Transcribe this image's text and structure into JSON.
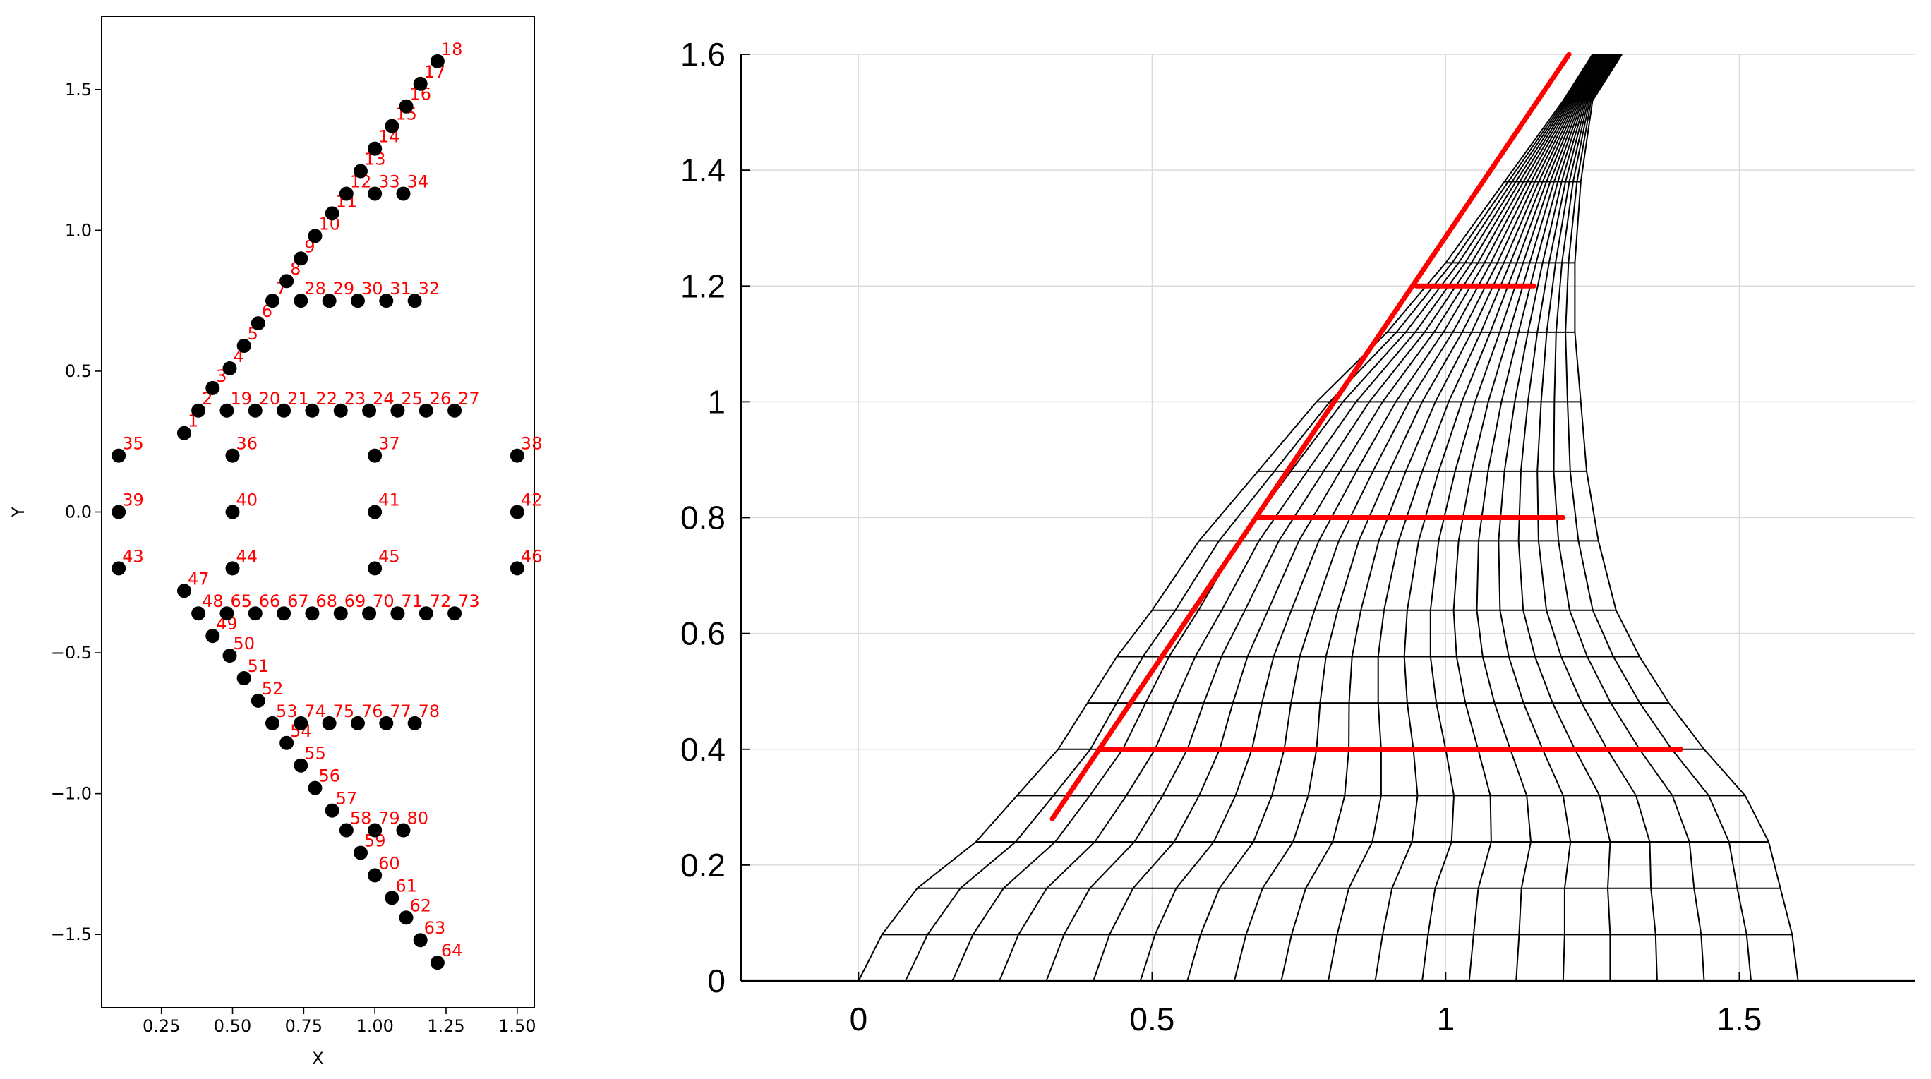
{
  "chart_data": [
    {
      "type": "scatter",
      "title": "",
      "xlabel": "X",
      "ylabel": "Y",
      "xlim": [
        0.04,
        1.56
      ],
      "ylim": [
        -1.76,
        1.76
      ],
      "xticks": [
        "0.25",
        "0.50",
        "0.75",
        "1.00",
        "1.25",
        "1.50"
      ],
      "xtick_values": [
        0.25,
        0.5,
        0.75,
        1.0,
        1.25,
        1.5
      ],
      "yticks": [
        "−1.5",
        "−1.0",
        "−0.5",
        "0.0",
        "0.5",
        "1.0",
        "1.5"
      ],
      "ytick_values": [
        -1.5,
        -1.0,
        -0.5,
        0.0,
        0.5,
        1.0,
        1.5
      ],
      "grid": false,
      "marker_color": "#000000",
      "label_color": "#ff0000",
      "points": [
        {
          "id": "1",
          "x": 0.33,
          "y": 0.28
        },
        {
          "id": "2",
          "x": 0.38,
          "y": 0.36
        },
        {
          "id": "3",
          "x": 0.43,
          "y": 0.44
        },
        {
          "id": "4",
          "x": 0.49,
          "y": 0.51
        },
        {
          "id": "5",
          "x": 0.54,
          "y": 0.59
        },
        {
          "id": "6",
          "x": 0.59,
          "y": 0.67
        },
        {
          "id": "7",
          "x": 0.64,
          "y": 0.75
        },
        {
          "id": "8",
          "x": 0.69,
          "y": 0.82
        },
        {
          "id": "9",
          "x": 0.74,
          "y": 0.9
        },
        {
          "id": "10",
          "x": 0.79,
          "y": 0.98
        },
        {
          "id": "11",
          "x": 0.85,
          "y": 1.06
        },
        {
          "id": "12",
          "x": 0.9,
          "y": 1.13
        },
        {
          "id": "13",
          "x": 0.95,
          "y": 1.21
        },
        {
          "id": "14",
          "x": 1.0,
          "y": 1.29
        },
        {
          "id": "15",
          "x": 1.06,
          "y": 1.37
        },
        {
          "id": "16",
          "x": 1.11,
          "y": 1.44
        },
        {
          "id": "17",
          "x": 1.16,
          "y": 1.52
        },
        {
          "id": "18",
          "x": 1.22,
          "y": 1.6
        },
        {
          "id": "19",
          "x": 0.48,
          "y": 0.36
        },
        {
          "id": "20",
          "x": 0.58,
          "y": 0.36
        },
        {
          "id": "21",
          "x": 0.68,
          "y": 0.36
        },
        {
          "id": "22",
          "x": 0.78,
          "y": 0.36
        },
        {
          "id": "23",
          "x": 0.88,
          "y": 0.36
        },
        {
          "id": "24",
          "x": 0.98,
          "y": 0.36
        },
        {
          "id": "25",
          "x": 1.08,
          "y": 0.36
        },
        {
          "id": "26",
          "x": 1.18,
          "y": 0.36
        },
        {
          "id": "27",
          "x": 1.28,
          "y": 0.36
        },
        {
          "id": "28",
          "x": 0.74,
          "y": 0.75
        },
        {
          "id": "29",
          "x": 0.84,
          "y": 0.75
        },
        {
          "id": "30",
          "x": 0.94,
          "y": 0.75
        },
        {
          "id": "31",
          "x": 1.04,
          "y": 0.75
        },
        {
          "id": "32",
          "x": 1.14,
          "y": 0.75
        },
        {
          "id": "33",
          "x": 1.0,
          "y": 1.13
        },
        {
          "id": "34",
          "x": 1.1,
          "y": 1.13
        },
        {
          "id": "35",
          "x": 0.1,
          "y": 0.2
        },
        {
          "id": "36",
          "x": 0.5,
          "y": 0.2
        },
        {
          "id": "37",
          "x": 1.0,
          "y": 0.2
        },
        {
          "id": "38",
          "x": 1.5,
          "y": 0.2
        },
        {
          "id": "39",
          "x": 0.1,
          "y": 0.0
        },
        {
          "id": "40",
          "x": 0.5,
          "y": 0.0
        },
        {
          "id": "41",
          "x": 1.0,
          "y": 0.0
        },
        {
          "id": "42",
          "x": 1.5,
          "y": 0.0
        },
        {
          "id": "43",
          "x": 0.1,
          "y": -0.2
        },
        {
          "id": "44",
          "x": 0.5,
          "y": -0.2
        },
        {
          "id": "45",
          "x": 1.0,
          "y": -0.2
        },
        {
          "id": "46",
          "x": 1.5,
          "y": -0.2
        },
        {
          "id": "47",
          "x": 0.33,
          "y": -0.28
        },
        {
          "id": "48",
          "x": 0.38,
          "y": -0.36
        },
        {
          "id": "49",
          "x": 0.43,
          "y": -0.44
        },
        {
          "id": "50",
          "x": 0.49,
          "y": -0.51
        },
        {
          "id": "51",
          "x": 0.54,
          "y": -0.59
        },
        {
          "id": "52",
          "x": 0.59,
          "y": -0.67
        },
        {
          "id": "53",
          "x": 0.64,
          "y": -0.75
        },
        {
          "id": "54",
          "x": 0.69,
          "y": -0.82
        },
        {
          "id": "55",
          "x": 0.74,
          "y": -0.9
        },
        {
          "id": "56",
          "x": 0.79,
          "y": -0.98
        },
        {
          "id": "57",
          "x": 0.85,
          "y": -1.06
        },
        {
          "id": "58",
          "x": 0.9,
          "y": -1.13
        },
        {
          "id": "59",
          "x": 0.95,
          "y": -1.21
        },
        {
          "id": "60",
          "x": 1.0,
          "y": -1.29
        },
        {
          "id": "61",
          "x": 1.06,
          "y": -1.37
        },
        {
          "id": "62",
          "x": 1.11,
          "y": -1.44
        },
        {
          "id": "63",
          "x": 1.16,
          "y": -1.52
        },
        {
          "id": "64",
          "x": 1.22,
          "y": -1.6
        },
        {
          "id": "65",
          "x": 0.48,
          "y": -0.36
        },
        {
          "id": "66",
          "x": 0.58,
          "y": -0.36
        },
        {
          "id": "67",
          "x": 0.68,
          "y": -0.36
        },
        {
          "id": "68",
          "x": 0.78,
          "y": -0.36
        },
        {
          "id": "69",
          "x": 0.88,
          "y": -0.36
        },
        {
          "id": "70",
          "x": 0.98,
          "y": -0.36
        },
        {
          "id": "71",
          "x": 1.08,
          "y": -0.36
        },
        {
          "id": "72",
          "x": 1.18,
          "y": -0.36
        },
        {
          "id": "73",
          "x": 1.28,
          "y": -0.36
        },
        {
          "id": "74",
          "x": 0.74,
          "y": -0.75
        },
        {
          "id": "75",
          "x": 0.84,
          "y": -0.75
        },
        {
          "id": "76",
          "x": 0.94,
          "y": -0.75
        },
        {
          "id": "77",
          "x": 1.04,
          "y": -0.75
        },
        {
          "id": "78",
          "x": 1.14,
          "y": -0.75
        },
        {
          "id": "79",
          "x": 1.0,
          "y": -1.13
        },
        {
          "id": "80",
          "x": 1.1,
          "y": -1.13
        }
      ]
    },
    {
      "type": "line",
      "title": "",
      "xlabel": "",
      "ylabel": "",
      "xlim": [
        -0.2,
        1.8
      ],
      "ylim": [
        0,
        1.6
      ],
      "xticks": [
        "0",
        "0.5",
        "1",
        "1.5"
      ],
      "xtick_values": [
        0,
        0.5,
        1,
        1.5
      ],
      "yticks": [
        "0",
        "0.2",
        "0.4",
        "0.6",
        "0.8",
        "1",
        "1.2",
        "1.4",
        "1.6"
      ],
      "ytick_values": [
        0,
        0.2,
        0.4,
        0.6,
        0.8,
        1,
        1.2,
        1.4,
        1.6
      ],
      "grid": true,
      "mesh_color": "#000000",
      "highlight_color": "#ff0000",
      "mesh_left_boundary": [
        [
          0,
          0
        ],
        [
          0.04,
          0.08
        ],
        [
          0.1,
          0.16
        ],
        [
          0.2,
          0.24
        ],
        [
          0.27,
          0.32
        ],
        [
          0.34,
          0.4
        ],
        [
          0.39,
          0.48
        ],
        [
          0.44,
          0.56
        ],
        [
          0.5,
          0.64
        ],
        [
          0.58,
          0.76
        ],
        [
          0.68,
          0.88
        ],
        [
          0.78,
          1.0
        ],
        [
          0.9,
          1.12
        ],
        [
          1.0,
          1.24
        ],
        [
          1.1,
          1.38
        ],
        [
          1.2,
          1.52
        ],
        [
          1.25,
          1.6
        ]
      ],
      "mesh_right_boundary": [
        [
          1.6,
          0
        ],
        [
          1.59,
          0.08
        ],
        [
          1.57,
          0.16
        ],
        [
          1.55,
          0.24
        ],
        [
          1.51,
          0.32
        ],
        [
          1.44,
          0.4
        ],
        [
          1.38,
          0.48
        ],
        [
          1.33,
          0.56
        ],
        [
          1.29,
          0.64
        ],
        [
          1.26,
          0.76
        ],
        [
          1.24,
          0.88
        ],
        [
          1.23,
          1.0
        ],
        [
          1.22,
          1.12
        ],
        [
          1.22,
          1.24
        ],
        [
          1.23,
          1.38
        ],
        [
          1.25,
          1.52
        ],
        [
          1.3,
          1.6
        ]
      ],
      "mesh_columns": 21,
      "red_lines": [
        [
          [
            0.33,
            0.28
          ],
          [
            1.21,
            1.6
          ]
        ],
        [
          [
            0.41,
            0.4
          ],
          [
            1.4,
            0.4
          ]
        ],
        [
          [
            0.68,
            0.8
          ],
          [
            1.2,
            0.8
          ]
        ],
        [
          [
            0.95,
            1.2
          ],
          [
            1.15,
            1.2
          ]
        ]
      ]
    }
  ]
}
